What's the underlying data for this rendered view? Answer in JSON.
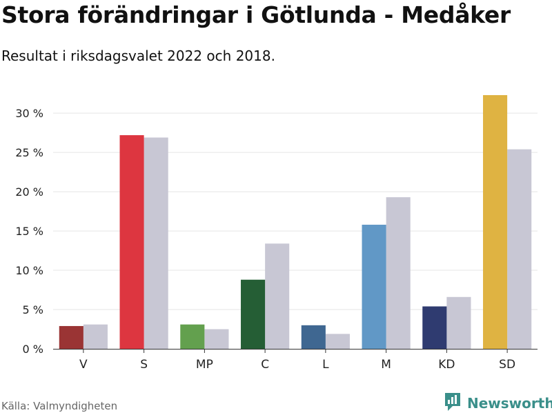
{
  "header": {
    "title": "Stora förändringar i Götlunda - Medåker",
    "subtitle": "Resultat i riksdagsvalet 2022 och 2018."
  },
  "footer": {
    "source": "Källa: Valmyndigheten",
    "brand": "Newsworthy"
  },
  "colors": {
    "previous": "#c8c7d4",
    "grid": "#e5e5e5",
    "axis": "#333333",
    "brand": "#3a8f8a"
  },
  "chart_data": {
    "type": "bar",
    "categories": [
      "V",
      "S",
      "MP",
      "C",
      "L",
      "M",
      "KD",
      "SD"
    ],
    "series": [
      {
        "values": [
          2.9,
          27.2,
          3.1,
          8.8,
          3.0,
          15.8,
          5.4,
          32.3
        ],
        "colors": [
          "#9a3434",
          "#dd3640",
          "#63a04e",
          "#255e35",
          "#3f6791",
          "#6198c6",
          "#2f3b70",
          "#dfb342"
        ]
      },
      {
        "values": [
          3.1,
          26.9,
          2.5,
          13.4,
          1.9,
          19.3,
          6.6,
          25.4
        ]
      }
    ],
    "ylim": [
      0,
      33
    ],
    "yticks": [
      0,
      5,
      10,
      15,
      20,
      25,
      30
    ],
    "ytick_labels": [
      "0 %",
      "5 %",
      "10 %",
      "15 %",
      "20 %",
      "25 %",
      "30 %"
    ],
    "grid": true,
    "legend": "none"
  }
}
